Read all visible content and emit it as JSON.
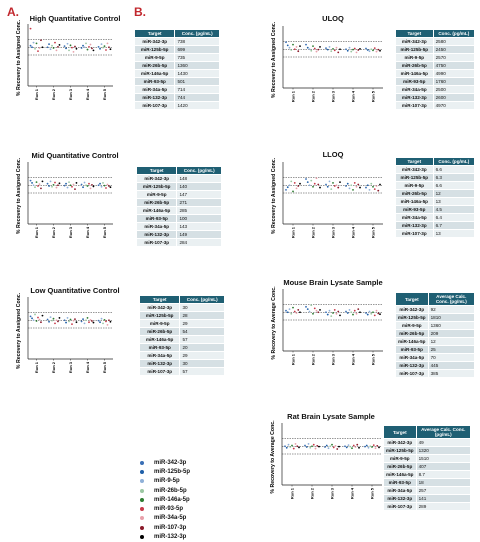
{
  "panels": {
    "a": "A.",
    "b": "B."
  },
  "legend": [
    {
      "name": "miR-342-3p",
      "color": "#3a6fb5"
    },
    {
      "name": "miR-125b-5p",
      "color": "#1f5fa8"
    },
    {
      "name": "miR-9-5p",
      "color": "#8fb0d8"
    },
    {
      "name": "miR-26b-5p",
      "color": "#9bc7a2"
    },
    {
      "name": "miR-146a-5p",
      "color": "#2e7d32"
    },
    {
      "name": "miR-93-5p",
      "color": "#c83a4a"
    },
    {
      "name": "miR-34a-5p",
      "color": "#e8a0aa"
    },
    {
      "name": "miR-107-3p",
      "color": "#8a1a2a"
    },
    {
      "name": "miR-132-3p",
      "color": "#000000"
    }
  ],
  "chart_data": [
    {
      "type": "scatter",
      "title": "High Quantitative Control",
      "ylabel": "% Recovery to Assigned Conc.",
      "categories": [
        "Run 1",
        "Run 2",
        "Run 3",
        "Run 4",
        "Run 5"
      ],
      "ylim": [
        0,
        160
      ],
      "reference_lines": [
        120,
        100,
        80
      ],
      "jitter_values": [
        [
          104,
          100,
          112,
          96,
          110,
          90,
          98,
          118,
          100
        ],
        [
          100,
          108,
          95,
          104,
          98,
          112,
          92,
          101,
          106
        ],
        [
          103,
          97,
          109,
          92,
          105,
          99,
          88,
          102,
          96
        ],
        [
          98,
          104,
          100,
          110,
          94,
          101,
          107,
          97,
          92
        ],
        [
          101,
          96,
          108,
          99,
          103,
          93,
          110,
          100,
          95
        ]
      ],
      "outlier": {
        "run": 0,
        "value": 148
      }
    },
    {
      "type": "scatter",
      "title": "Mid Quantitative Control",
      "ylabel": "% Recovery to Assigned Conc.",
      "categories": [
        "Run 1",
        "Run 2",
        "Run 3",
        "Run 4",
        "Run 5"
      ],
      "ylim": [
        0,
        160
      ],
      "reference_lines": [
        120,
        100,
        80
      ],
      "jitter_values": [
        [
          112,
          106,
          100,
          95,
          108,
          98,
          103,
          92,
          110
        ],
        [
          104,
          98,
          110,
          96,
          101,
          107,
          94,
          100,
          105
        ],
        [
          99,
          104,
          94,
          108,
          100,
          96,
          102,
          90,
          106
        ],
        [
          102,
          95,
          107,
          100,
          98,
          104,
          92,
          101,
          97
        ],
        [
          100,
          104,
          96,
          106,
          99,
          93,
          102,
          98,
          95
        ]
      ]
    },
    {
      "type": "scatter",
      "title": "Low Quantitative Control",
      "ylabel": "% Recovery to Assigned Conc.",
      "categories": [
        "Run 1",
        "Run 2",
        "Run 3",
        "Run 4",
        "Run 5"
      ],
      "ylim": [
        0,
        160
      ],
      "reference_lines": [
        120,
        100,
        80
      ],
      "jitter_values": [
        [
          110,
          105,
          100,
          115,
          98,
          107,
          102,
          95,
          112
        ],
        [
          102,
          96,
          108,
          99,
          104,
          92,
          100,
          97,
          106
        ],
        [
          100,
          94,
          106,
          97,
          102,
          90,
          99,
          103,
          95
        ],
        [
          97,
          103,
          92,
          100,
          106,
          95,
          101,
          98,
          94
        ],
        [
          99,
          95,
          104,
          92,
          101,
          97,
          88,
          100,
          96
        ]
      ]
    },
    {
      "type": "scatter",
      "title": "ULOQ",
      "ylabel": "% Recovery to Assigned Conc.",
      "categories": [
        "Run 1",
        "Run 2",
        "Run 3",
        "Run 4",
        "Run 5"
      ],
      "ylim": [
        0,
        160
      ],
      "reference_lines": [
        120,
        100,
        80
      ],
      "jitter_values": [
        [
          118,
          110,
          104,
          98,
          112,
          100,
          106,
          95,
          108
        ],
        [
          112,
          104,
          100,
          96,
          108,
          102,
          94,
          99,
          106
        ],
        [
          103,
          99,
          106,
          95,
          101,
          97,
          104,
          92,
          100
        ],
        [
          100,
          96,
          104,
          94,
          99,
          102,
          92,
          98,
          101
        ],
        [
          102,
          98,
          95,
          100,
          97,
          103,
          94,
          99,
          96
        ]
      ]
    },
    {
      "type": "scatter",
      "title": "LLOQ",
      "ylabel": "% Recovery to Assigned Conc.",
      "categories": [
        "Run 1",
        "Run 2",
        "Run 3",
        "Run 4",
        "Run 5"
      ],
      "ylim": [
        0,
        160
      ],
      "reference_lines": [
        120,
        100,
        80
      ],
      "jitter_values": [
        [
          88,
          95,
          100,
          110,
          84,
          106,
          92,
          98,
          104
        ],
        [
          116,
          108,
          100,
          112,
          96,
          104,
          118,
          102,
          94
        ],
        [
          102,
          96,
          110,
          90,
          106,
          98,
          100,
          94,
          108
        ],
        [
          98,
          104,
          92,
          100,
          88,
          106,
          96,
          102,
          94
        ],
        [
          94,
          100,
          88,
          104,
          96,
          90,
          98,
          86,
          102
        ]
      ]
    },
    {
      "type": "scatter",
      "title": "Mouse Brain Lysate Sample",
      "ylabel": "% Recovery to Average Conc.",
      "categories": [
        "Run 1",
        "Run 2",
        "Run 3",
        "Run 4",
        "Run 5"
      ],
      "ylim": [
        0,
        160
      ],
      "reference_lines": [
        120,
        100,
        80
      ],
      "jitter_values": [
        [
          104,
          100,
          108,
          96,
          112,
          102,
          98,
          106,
          100
        ],
        [
          114,
          108,
          102,
          118,
          96,
          110,
          104,
          100,
          106
        ],
        [
          100,
          94,
          104,
          90,
          98,
          106,
          96,
          102,
          92
        ],
        [
          102,
          98,
          106,
          100,
          94,
          104,
          96,
          108,
          100
        ],
        [
          98,
          94,
          102,
          96,
          100,
          92,
          104,
          97,
          95
        ]
      ]
    },
    {
      "type": "scatter",
      "title": "Rat Brain Lysate Sample",
      "ylabel": "% Recovery to Average Conc.",
      "categories": [
        "Run 1",
        "Run 2",
        "Run 3",
        "Run 4",
        "Run 5"
      ],
      "ylim": [
        0,
        160
      ],
      "reference_lines": [
        120,
        100,
        80
      ],
      "jitter_values": [
        [
          100,
          96,
          104,
          98,
          102,
          94,
          106,
          100,
          97
        ],
        [
          102,
          98,
          106,
          96,
          100,
          104,
          94,
          101,
          99
        ],
        [
          98,
          102,
          95,
          100,
          104,
          97,
          101,
          93,
          99
        ],
        [
          100,
          97,
          103,
          99,
          95,
          102,
          98,
          104,
          96
        ],
        [
          99,
          102,
          96,
          100,
          98,
          103,
          95,
          101,
          97
        ]
      ]
    }
  ],
  "tables": [
    {
      "header": [
        "Target",
        "Conc. (pg/mL)"
      ],
      "rows": [
        [
          "miR-342-3p",
          "738"
        ],
        [
          "miR-125b-5p",
          "699"
        ],
        [
          "miR-9-5p",
          "735"
        ],
        [
          "miR-26b-5p",
          "1360"
        ],
        [
          "miR-146a-5p",
          "1430"
        ],
        [
          "miR-93-5p",
          "501"
        ],
        [
          "miR-34a-5p",
          "714"
        ],
        [
          "miR-132-3p",
          "744"
        ],
        [
          "miR-107-3p",
          "1420"
        ]
      ]
    },
    {
      "header": [
        "Target",
        "Conc. (pg/mL)"
      ],
      "rows": [
        [
          "miR-342-3p",
          "148"
        ],
        [
          "miR-125b-5p",
          "140"
        ],
        [
          "miR-9-5p",
          "147"
        ],
        [
          "miR-26b-5p",
          "271"
        ],
        [
          "miR-146a-5p",
          "285"
        ],
        [
          "miR-93-5p",
          "100"
        ],
        [
          "miR-34a-5p",
          "143"
        ],
        [
          "miR-132-3p",
          "149"
        ],
        [
          "miR-107-3p",
          "284"
        ]
      ]
    },
    {
      "header": [
        "Target",
        "Conc. (pg/mL)"
      ],
      "rows": [
        [
          "miR-342-3p",
          "30"
        ],
        [
          "miR-125b-5p",
          "28"
        ],
        [
          "miR-9-5p",
          "29"
        ],
        [
          "miR-26b-5p",
          "54"
        ],
        [
          "miR-146a-5p",
          "57"
        ],
        [
          "miR-93-5p",
          "20"
        ],
        [
          "miR-34a-5p",
          "29"
        ],
        [
          "miR-132-3p",
          "30"
        ],
        [
          "miR-107-3p",
          "57"
        ]
      ]
    },
    {
      "header": [
        "Target",
        "Conc. (pg/mL)"
      ],
      "rows": [
        [
          "miR-342-3p",
          "2580"
        ],
        [
          "miR-125b-5p",
          "2450"
        ],
        [
          "miR-9-5p",
          "2570"
        ],
        [
          "miR-26b-5p",
          "4750"
        ],
        [
          "miR-146a-5p",
          "4990"
        ],
        [
          "miR-93-5p",
          "1760"
        ],
        [
          "miR-34a-5p",
          "2500"
        ],
        [
          "miR-132-3p",
          "2600"
        ],
        [
          "miR-107-3p",
          "4970"
        ]
      ]
    },
    {
      "header": [
        "Target",
        "Conc. (pg/mL)"
      ],
      "rows": [
        [
          "miR-342-3p",
          "6.6"
        ],
        [
          "miR-125b-5p",
          "6.3"
        ],
        [
          "miR-9-5p",
          "6.6"
        ],
        [
          "miR-26b-5p",
          "12"
        ],
        [
          "miR-146a-5p",
          "13"
        ],
        [
          "miR-93-5p",
          "4.5"
        ],
        [
          "miR-34a-5p",
          "6.4"
        ],
        [
          "miR-132-3p",
          "6.7"
        ],
        [
          "miR-107-3p",
          "13"
        ]
      ]
    },
    {
      "header": [
        "Target",
        "Average Calc. Conc. (pg/mL)"
      ],
      "rows": [
        [
          "miR-342-3p",
          "92"
        ],
        [
          "miR-125b-5p",
          "1810"
        ],
        [
          "miR-9-5p",
          "1360"
        ],
        [
          "miR-26b-5p",
          "209"
        ],
        [
          "miR-146a-5p",
          "12"
        ],
        [
          "miR-93-5p",
          "25"
        ],
        [
          "miR-34a-5p",
          "70"
        ],
        [
          "miR-132-3p",
          "445"
        ],
        [
          "miR-107-3p",
          "385"
        ]
      ]
    },
    {
      "header": [
        "Target",
        "Average Calc. Conc. (pg/mL)"
      ],
      "rows": [
        [
          "miR-342-3p",
          "49"
        ],
        [
          "miR-125b-5p",
          "1320"
        ],
        [
          "miR-9-5p",
          "1510"
        ],
        [
          "miR-26b-5p",
          "407"
        ],
        [
          "miR-146a-5p",
          "8.7"
        ],
        [
          "miR-93-5p",
          "18"
        ],
        [
          "miR-34a-5p",
          "257"
        ],
        [
          "miR-132-3p",
          "141"
        ],
        [
          "miR-107-3p",
          "289"
        ]
      ]
    }
  ]
}
